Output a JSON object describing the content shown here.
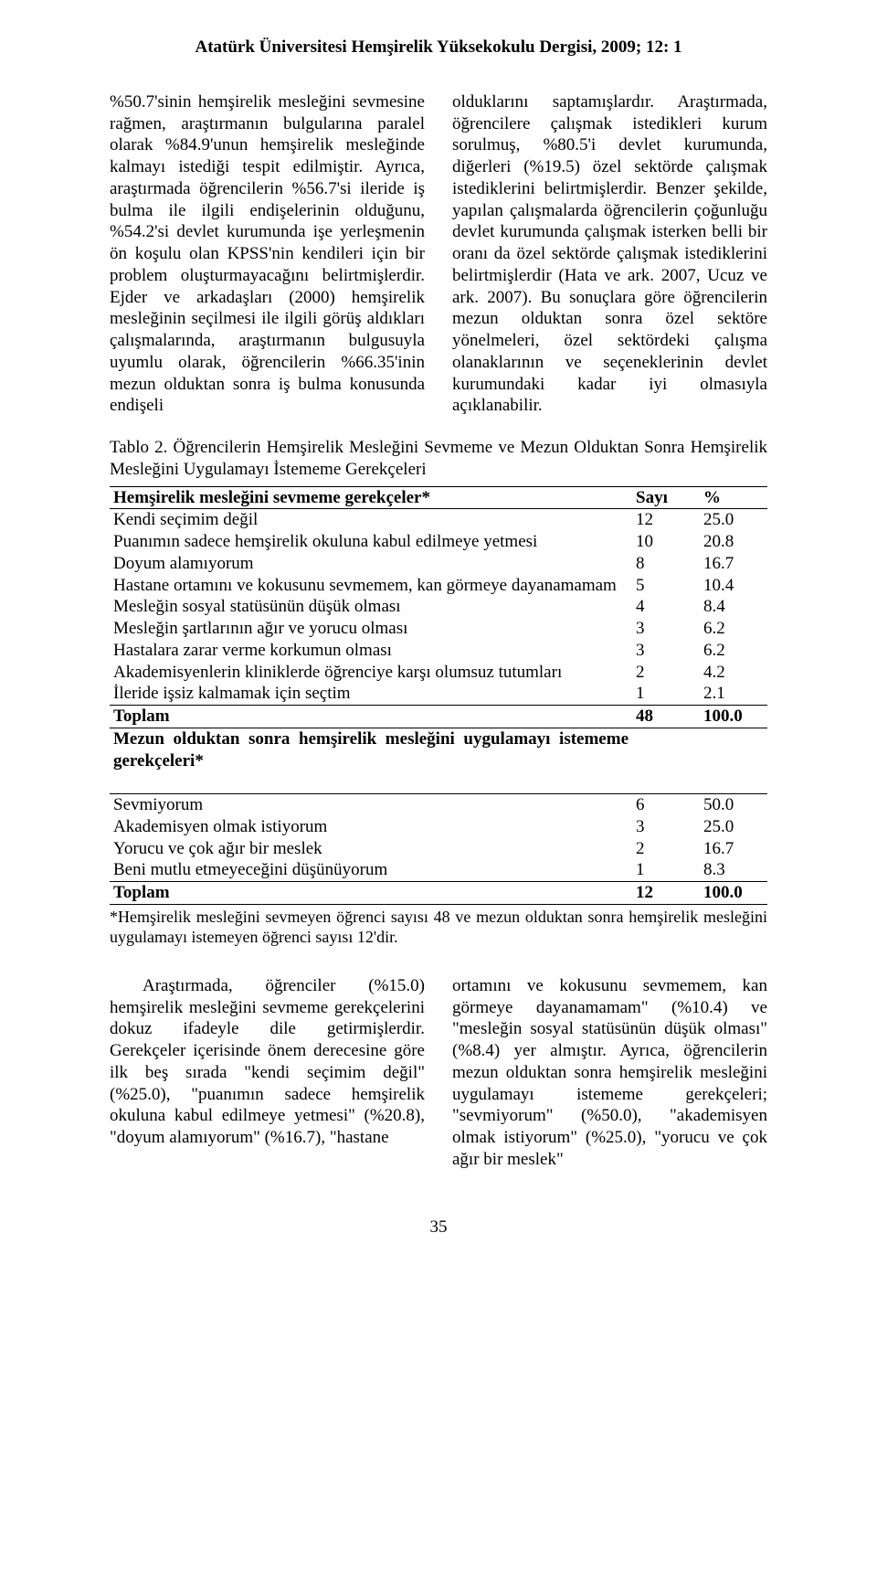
{
  "journal": "Atatürk Üniversitesi Hemşirelik Yüksekokulu Dergisi, 2009; 12: 1",
  "body_left": "%50.7'sinin hemşirelik mesleğini sevmesine rağmen, araştırmanın bulgularına paralel olarak %84.9'unun hemşirelik mesleğinde kalmayı istediği tespit edilmiştir. Ayrıca, araştırmada öğrencilerin %56.7'si ileride iş bulma ile ilgili endişelerinin olduğunu, %54.2'si devlet kurumunda işe yerleşmenin ön koşulu olan KPSS'nin kendileri için bir problem oluşturmayacağını belirtmişlerdir. Ejder ve arkadaşları (2000) hemşirelik mesleğinin seçilmesi ile ilgili görüş aldıkları çalışmalarında, araştırmanın bulgusuyla uyumlu olarak, öğrencilerin %66.35'inin mezun olduktan sonra iş bulma konusunda endişeli",
  "body_right": "olduklarını saptamışlardır. Araştırmada, öğrencilere çalışmak istedikleri kurum sorulmuş, %80.5'i devlet kurumunda, diğerleri (%19.5) özel sektörde çalışmak istediklerini belirtmişlerdir. Benzer şekilde, yapılan çalışmalarda öğrencilerin çoğunluğu devlet kurumunda çalışmak isterken belli bir oranı da özel sektörde çalışmak istediklerini belirtmişlerdir (Hata ve ark. 2007, Ucuz ve ark. 2007). Bu sonuçlara göre öğrencilerin mezun olduktan sonra özel sektöre yönelmeleri, özel sektördeki çalışma olanaklarının ve seçeneklerinin devlet kurumundaki kadar iyi olmasıyla açıklanabilir.",
  "table_caption": "Tablo 2. Öğrencilerin Hemşirelik Mesleğini Sevmeme ve Mezun Olduktan Sonra Hemşirelik Mesleğini Uygulamayı İstememe Gerekçeleri",
  "tbl": {
    "hdr_reason_a": "Hemşirelik mesleğini sevmeme gerekçeler*",
    "hdr_sayi": "Sayı",
    "hdr_pct": "%",
    "rows_a": [
      {
        "label": "Kendi seçimim değil",
        "sayi": "12",
        "pct": "25.0"
      },
      {
        "label": "Puanımın sadece hemşirelik okuluna kabul edilmeye yetmesi",
        "sayi": "10",
        "pct": "20.8"
      },
      {
        "label": "Doyum alamıyorum",
        "sayi": "8",
        "pct": "16.7"
      },
      {
        "label": "Hastane ortamını ve kokusunu sevmemem, kan görmeye dayanamamam",
        "sayi": "5",
        "pct": "10.4"
      },
      {
        "label": "Mesleğin sosyal statüsünün düşük olması",
        "sayi": "4",
        "pct": "8.4"
      },
      {
        "label": "Mesleğin şartlarının ağır ve yorucu olması",
        "sayi": "3",
        "pct": "6.2"
      },
      {
        "label": "Hastalara zarar verme korkumun olması",
        "sayi": "3",
        "pct": "6.2"
      },
      {
        "label": "Akademisyenlerin kliniklerde öğrenciye karşı olumsuz tutumları",
        "sayi": "2",
        "pct": "4.2"
      },
      {
        "label": "İleride işsiz kalmamak için seçtim",
        "sayi": "1",
        "pct": "2.1"
      }
    ],
    "total_a": {
      "label": "Toplam",
      "sayi": "48",
      "pct": "100.0"
    },
    "hdr_reason_b": "Mezun olduktan sonra hemşirelik mesleğini uygulamayı istememe gerekçeleri*",
    "rows_b": [
      {
        "label": "Sevmiyorum",
        "sayi": "6",
        "pct": "50.0"
      },
      {
        "label": "Akademisyen olmak istiyorum",
        "sayi": "3",
        "pct": "25.0"
      },
      {
        "label": "Yorucu ve çok ağır bir meslek",
        "sayi": "2",
        "pct": "16.7"
      },
      {
        "label": "Beni mutlu etmeyeceğini düşünüyorum",
        "sayi": "1",
        "pct": "8.3"
      }
    ],
    "total_b": {
      "label": "Toplam",
      "sayi": "12",
      "pct": "100.0"
    }
  },
  "footnote": "*Hemşirelik mesleğini sevmeyen öğrenci sayısı 48 ve mezun olduktan sonra hemşirelik mesleğini uygulamayı istemeyen öğrenci sayısı 12'dir.",
  "lower_left": "Araştırmada, öğrenciler (%15.0) hemşirelik mesleğini sevmeme gerekçelerini dokuz ifadeyle dile getirmişlerdir. Gerekçeler içerisinde önem derecesine göre ilk beş sırada \"kendi seçimim değil\" (%25.0), \"puanımın sadece hemşirelik okuluna kabul edilmeye yetmesi\" (%20.8), \"doyum alamıyorum\" (%16.7), \"hastane",
  "lower_right": "ortamını ve kokusunu sevmemem, kan görmeye dayanamamam\" (%10.4) ve \"mesleğin sosyal statüsünün düşük olması\" (%8.4) yer almıştır. Ayrıca, öğrencilerin mezun olduktan sonra hemşirelik mesleğini uygulamayı istememe gerekçeleri; \"sevmiyorum\" (%50.0), \"akademisyen olmak istiyorum\" (%25.0), \"yorucu ve çok ağır bir meslek\"",
  "page_number": "35"
}
